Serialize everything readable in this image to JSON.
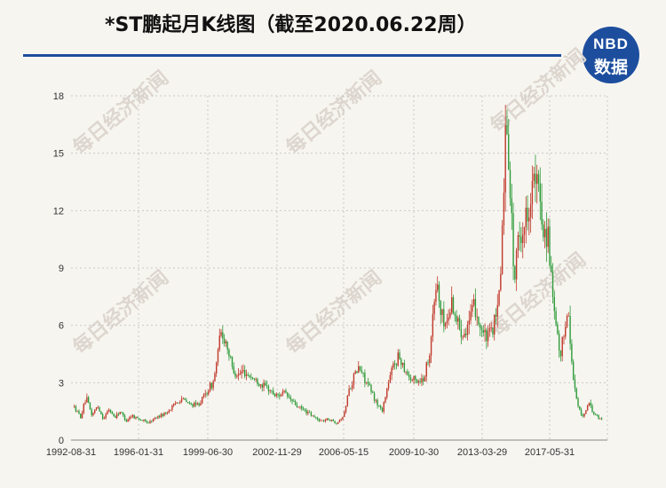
{
  "title": "*ST鹏起月K线图（截至2020.06.22周）",
  "logo": {
    "line1": "NBD",
    "line2": "数据"
  },
  "watermark": "每日经济新闻",
  "colors": {
    "up": "#c0392b",
    "down": "#2e9b3a",
    "accent": "#1d4e9e",
    "grid": "#c9c9c9"
  },
  "chart_data": {
    "type": "candlestick",
    "title": "*ST鹏起月K线图（截至2020.06.22周）",
    "xlabel": "",
    "ylabel": "",
    "ylim": [
      0,
      18
    ],
    "yticks": [
      0,
      3,
      6,
      9,
      12,
      15,
      18
    ],
    "xtick_labels": [
      "1992-08-31",
      "1996-01-31",
      "1999-06-30",
      "2002-11-29",
      "2006-05-15",
      "2009-10-30",
      "2013-03-29",
      "2017-05-31"
    ],
    "grid": true,
    "legend": "none",
    "series": [
      {
        "values": [
          [
            1992.67,
            1.7
          ],
          [
            1993.0,
            1.2
          ],
          [
            1993.3,
            2.2
          ],
          [
            1993.6,
            1.3
          ],
          [
            1993.9,
            1.8
          ],
          [
            1994.2,
            1.1
          ],
          [
            1994.5,
            1.6
          ],
          [
            1994.8,
            1.2
          ],
          [
            1995.1,
            1.5
          ],
          [
            1995.4,
            1.0
          ],
          [
            1995.7,
            1.3
          ],
          [
            1996.1,
            1.1
          ],
          [
            1996.6,
            0.9
          ],
          [
            1997.0,
            1.2
          ],
          [
            1997.5,
            1.4
          ],
          [
            1997.9,
            1.8
          ],
          [
            1998.3,
            2.2
          ],
          [
            1998.7,
            1.9
          ],
          [
            1999.1,
            1.8
          ],
          [
            1999.4,
            2.1
          ],
          [
            1999.7,
            2.6
          ],
          [
            2000.0,
            3.0
          ],
          [
            2000.2,
            4.2
          ],
          [
            2000.4,
            5.6
          ],
          [
            2000.7,
            5.1
          ],
          [
            2001.0,
            3.8
          ],
          [
            2001.3,
            3.4
          ],
          [
            2001.6,
            3.6
          ],
          [
            2002.0,
            3.3
          ],
          [
            2002.4,
            3.0
          ],
          [
            2002.9,
            2.7
          ],
          [
            2003.3,
            2.3
          ],
          [
            2003.7,
            2.5
          ],
          [
            2004.1,
            2.1
          ],
          [
            2004.5,
            1.7
          ],
          [
            2004.9,
            1.5
          ],
          [
            2005.3,
            1.2
          ],
          [
            2005.7,
            1.0
          ],
          [
            2006.1,
            1.1
          ],
          [
            2006.5,
            0.9
          ],
          [
            2006.9,
            1.3
          ],
          [
            2007.1,
            2.4
          ],
          [
            2007.4,
            3.3
          ],
          [
            2007.7,
            3.8
          ],
          [
            2008.0,
            3.2
          ],
          [
            2008.3,
            2.6
          ],
          [
            2008.6,
            2.0
          ],
          [
            2008.9,
            1.5
          ],
          [
            2009.2,
            2.8
          ],
          [
            2009.5,
            3.9
          ],
          [
            2009.8,
            4.4
          ],
          [
            2010.1,
            3.8
          ],
          [
            2010.4,
            3.2
          ],
          [
            2010.8,
            3.1
          ],
          [
            2011.1,
            3.2
          ],
          [
            2011.4,
            4.5
          ],
          [
            2011.6,
            6.5
          ],
          [
            2011.8,
            8.4
          ],
          [
            2012.0,
            6.6
          ],
          [
            2012.3,
            6.0
          ],
          [
            2012.6,
            7.3
          ],
          [
            2012.9,
            6.1
          ],
          [
            2013.2,
            5.6
          ],
          [
            2013.5,
            6.2
          ],
          [
            2013.8,
            7.0
          ],
          [
            2014.1,
            5.9
          ],
          [
            2014.4,
            5.3
          ],
          [
            2014.7,
            5.7
          ],
          [
            2015.0,
            6.6
          ],
          [
            2015.2,
            9.5
          ],
          [
            2015.4,
            15.5
          ],
          [
            2015.5,
            16.8
          ],
          [
            2015.7,
            12.5
          ],
          [
            2015.9,
            8.2
          ],
          [
            2016.1,
            10.5
          ],
          [
            2016.4,
            11.2
          ],
          [
            2016.7,
            12.5
          ],
          [
            2016.9,
            13.6
          ],
          [
            2017.2,
            12.9
          ],
          [
            2017.4,
            11.2
          ],
          [
            2017.7,
            10.5
          ],
          [
            2017.9,
            7.3
          ],
          [
            2018.1,
            5.8
          ],
          [
            2018.3,
            4.2
          ],
          [
            2018.5,
            5.6
          ],
          [
            2018.7,
            7.0
          ],
          [
            2018.9,
            4.3
          ],
          [
            2019.1,
            2.5
          ],
          [
            2019.3,
            1.6
          ],
          [
            2019.5,
            1.2
          ],
          [
            2019.8,
            1.9
          ],
          [
            2020.1,
            1.4
          ],
          [
            2020.4,
            1.1
          ]
        ]
      }
    ]
  }
}
